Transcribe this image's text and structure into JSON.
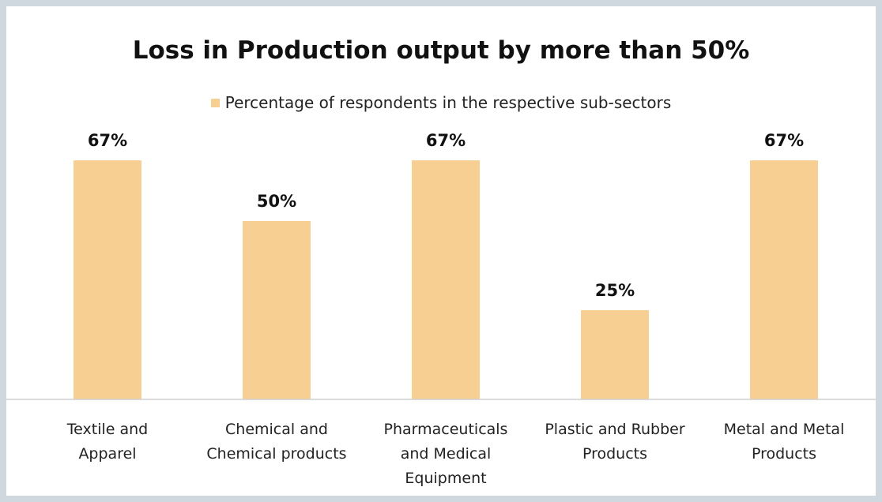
{
  "colors": {
    "bar": "#f8cf93",
    "axis": "#d0d0d0"
  },
  "chart_data": {
    "type": "bar",
    "title": "Loss in Production output by more than 50%",
    "legend": {
      "placement": "top",
      "label": "Percentage of respondents in the respective sub-sectors"
    },
    "categories": [
      [
        "Textile and",
        "Apparel"
      ],
      [
        "Chemical and",
        "Chemical products"
      ],
      [
        "Pharmaceuticals",
        "and Medical",
        "Equipment"
      ],
      [
        "Plastic and Rubber",
        "Products"
      ],
      [
        "Metal and Metal",
        "Products"
      ]
    ],
    "series": [
      {
        "name": "Percentage of respondents in the respective sub-sectors",
        "values": [
          67,
          50,
          67,
          25,
          67
        ],
        "labels": [
          "67%",
          "50%",
          "67%",
          "25%",
          "67%"
        ]
      }
    ],
    "ylim": [
      0,
      100
    ],
    "grid": false
  }
}
